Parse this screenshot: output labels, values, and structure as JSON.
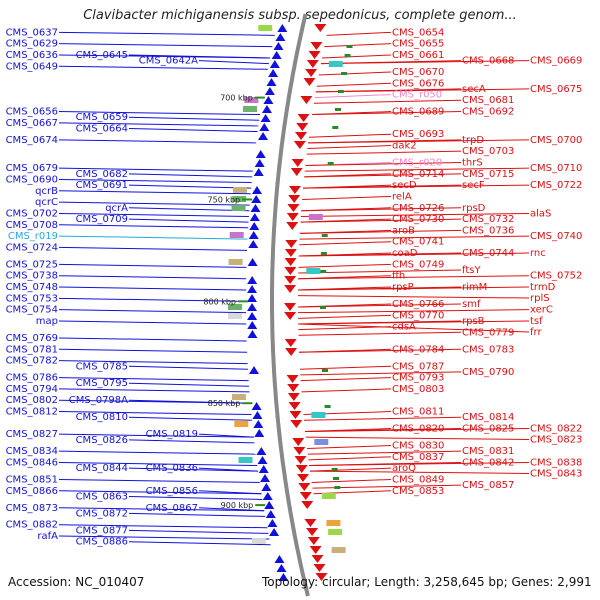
{
  "title": "Clavibacter michiganensis subsp. sepedonicus, complete genom...",
  "footer": {
    "accession": "Accession: NC_010407",
    "summary": "Topology: circular; Length: 3,258,645 bp; Genes: 2,991"
  },
  "colors": {
    "left_strand": "#1111dd",
    "right_strand": "#dd1111",
    "rna_left": "#22aadd",
    "rna_right": "#ee88cc",
    "ruler": "#888888",
    "tick": "#2a8a2a"
  },
  "scale_marks": [
    {
      "label": "700 kbp",
      "pos": 0.13
    },
    {
      "label": "750 kbp",
      "pos": 0.31
    },
    {
      "label": "800 kbp",
      "pos": 0.49
    },
    {
      "label": "850 kbp",
      "pos": 0.67
    },
    {
      "label": "900 kbp",
      "pos": 0.85
    }
  ],
  "left_labels": [
    {
      "text": "CMS_0637",
      "pos": 0.02
    },
    {
      "text": "CMS_0629",
      "pos": 0.04
    },
    {
      "text": "CMS_0636",
      "pos": 0.06
    },
    {
      "text": "CMS_0645",
      "pos": 0.06
    },
    {
      "text": "CMS_0642A",
      "pos": 0.07
    },
    {
      "text": "CMS_0649",
      "pos": 0.08
    },
    {
      "text": "CMS_0656",
      "pos": 0.16
    },
    {
      "text": "CMS_0659",
      "pos": 0.17
    },
    {
      "text": "CMS_0667",
      "pos": 0.18
    },
    {
      "text": "CMS_0664",
      "pos": 0.19
    },
    {
      "text": "CMS_0674",
      "pos": 0.21
    },
    {
      "text": "CMS_0679",
      "pos": 0.26
    },
    {
      "text": "CMS_0682",
      "pos": 0.27
    },
    {
      "text": "CMS_0690",
      "pos": 0.28
    },
    {
      "text": "CMS_0691",
      "pos": 0.29
    },
    {
      "text": "qcrB",
      "pos": 0.3
    },
    {
      "text": "qcrC",
      "pos": 0.32
    },
    {
      "text": "qcrA",
      "pos": 0.33
    },
    {
      "text": "CMS_0702",
      "pos": 0.34
    },
    {
      "text": "CMS_0709",
      "pos": 0.35
    },
    {
      "text": "CMS_0708",
      "pos": 0.36
    },
    {
      "text": "CMS_r019",
      "pos": 0.38,
      "rna": true
    },
    {
      "text": "CMS_0724",
      "pos": 0.4
    },
    {
      "text": "CMS_0725",
      "pos": 0.43
    },
    {
      "text": "CMS_0738",
      "pos": 0.45
    },
    {
      "text": "CMS_0748",
      "pos": 0.47
    },
    {
      "text": "CMS_0753",
      "pos": 0.49
    },
    {
      "text": "CMS_0754",
      "pos": 0.51
    },
    {
      "text": "map",
      "pos": 0.53
    },
    {
      "text": "CMS_0769",
      "pos": 0.56
    },
    {
      "text": "CMS_0781",
      "pos": 0.58
    },
    {
      "text": "CMS_0782",
      "pos": 0.6
    },
    {
      "text": "CMS_0785",
      "pos": 0.61
    },
    {
      "text": "CMS_0786",
      "pos": 0.63
    },
    {
      "text": "CMS_0795",
      "pos": 0.64
    },
    {
      "text": "CMS_0794",
      "pos": 0.65
    },
    {
      "text": "CMS_0802",
      "pos": 0.67
    },
    {
      "text": "CMS_0798A",
      "pos": 0.67
    },
    {
      "text": "CMS_0812",
      "pos": 0.69
    },
    {
      "text": "CMS_0810",
      "pos": 0.7
    },
    {
      "text": "CMS_0827",
      "pos": 0.73
    },
    {
      "text": "CMS_0826",
      "pos": 0.74
    },
    {
      "text": "CMS_0819",
      "pos": 0.73
    },
    {
      "text": "CMS_0834",
      "pos": 0.76
    },
    {
      "text": "CMS_0846",
      "pos": 0.78
    },
    {
      "text": "CMS_0844",
      "pos": 0.79
    },
    {
      "text": "CMS_0836",
      "pos": 0.79
    },
    {
      "text": "CMS_0851",
      "pos": 0.81
    },
    {
      "text": "CMS_0866",
      "pos": 0.83
    },
    {
      "text": "CMS_0863",
      "pos": 0.84
    },
    {
      "text": "CMS_0856",
      "pos": 0.83
    },
    {
      "text": "CMS_0873",
      "pos": 0.86
    },
    {
      "text": "CMS_0872",
      "pos": 0.87
    },
    {
      "text": "CMS_0867",
      "pos": 0.86
    },
    {
      "text": "CMS_0882",
      "pos": 0.89
    },
    {
      "text": "CMS_0877",
      "pos": 0.9
    },
    {
      "text": "rafA",
      "pos": 0.91
    },
    {
      "text": "CMS_0886",
      "pos": 0.92
    }
  ],
  "right_labels": [
    {
      "text": "CMS_0654",
      "pos": 0.02
    },
    {
      "text": "CMS_0655",
      "pos": 0.04
    },
    {
      "text": "CMS_0661",
      "pos": 0.06
    },
    {
      "text": "CMS_0668",
      "pos": 0.07
    },
    {
      "text": "CMS_0669",
      "pos": 0.07
    },
    {
      "text": "CMS_0670",
      "pos": 0.09
    },
    {
      "text": "CMS_0676",
      "pos": 0.11
    },
    {
      "text": "secA",
      "pos": 0.12
    },
    {
      "text": "CMS_0675",
      "pos": 0.12
    },
    {
      "text": "CMS_r050",
      "pos": 0.13,
      "rna": true
    },
    {
      "text": "CMS_0681",
      "pos": 0.14
    },
    {
      "text": "CMS_0689",
      "pos": 0.16
    },
    {
      "text": "CMS_0692",
      "pos": 0.16
    },
    {
      "text": "CMS_0693",
      "pos": 0.2
    },
    {
      "text": "trpD",
      "pos": 0.21
    },
    {
      "text": "CMS_0700",
      "pos": 0.21
    },
    {
      "text": "dak2",
      "pos": 0.22
    },
    {
      "text": "CMS_0703",
      "pos": 0.23
    },
    {
      "text": "CMS_r020",
      "pos": 0.25,
      "rna": true
    },
    {
      "text": "thrS",
      "pos": 0.25
    },
    {
      "text": "CMS_0710",
      "pos": 0.26
    },
    {
      "text": "CMS_0714",
      "pos": 0.27
    },
    {
      "text": "CMS_0715",
      "pos": 0.27
    },
    {
      "text": "secD",
      "pos": 0.29
    },
    {
      "text": "secF",
      "pos": 0.29
    },
    {
      "text": "CMS_0722",
      "pos": 0.29
    },
    {
      "text": "relA",
      "pos": 0.31
    },
    {
      "text": "CMS_0726",
      "pos": 0.33
    },
    {
      "text": "rpsD",
      "pos": 0.33
    },
    {
      "text": "alaS",
      "pos": 0.34
    },
    {
      "text": "CMS_0730",
      "pos": 0.35
    },
    {
      "text": "CMS_0732",
      "pos": 0.35
    },
    {
      "text": "aroB",
      "pos": 0.37
    },
    {
      "text": "CMS_0736",
      "pos": 0.37
    },
    {
      "text": "CMS_0740",
      "pos": 0.38
    },
    {
      "text": "CMS_0741",
      "pos": 0.39
    },
    {
      "text": "coaD",
      "pos": 0.41
    },
    {
      "text": "CMS_0744",
      "pos": 0.41
    },
    {
      "text": "rnc",
      "pos": 0.41
    },
    {
      "text": "CMS_0749",
      "pos": 0.43
    },
    {
      "text": "ftsY",
      "pos": 0.44
    },
    {
      "text": "ffh",
      "pos": 0.45
    },
    {
      "text": "CMS_0752",
      "pos": 0.45
    },
    {
      "text": "rpsP",
      "pos": 0.47
    },
    {
      "text": "rimM",
      "pos": 0.47
    },
    {
      "text": "trmD",
      "pos": 0.47
    },
    {
      "text": "rplS",
      "pos": 0.48
    },
    {
      "text": "CMS_0766",
      "pos": 0.5
    },
    {
      "text": "smf",
      "pos": 0.5
    },
    {
      "text": "xerC",
      "pos": 0.51
    },
    {
      "text": "CMS_0770",
      "pos": 0.52
    },
    {
      "text": "rpsB",
      "pos": 0.53
    },
    {
      "text": "tsf",
      "pos": 0.53
    },
    {
      "text": "frr",
      "pos": 0.53
    },
    {
      "text": "cdsA",
      "pos": 0.54
    },
    {
      "text": "CMS_0779",
      "pos": 0.55
    },
    {
      "text": "CMS_0784",
      "pos": 0.58
    },
    {
      "text": "CMS_0783",
      "pos": 0.58
    },
    {
      "text": "CMS_0787",
      "pos": 0.61
    },
    {
      "text": "CMS_0790",
      "pos": 0.62
    },
    {
      "text": "CMS_0793",
      "pos": 0.63
    },
    {
      "text": "CMS_0803",
      "pos": 0.65
    },
    {
      "text": "CMS_0811",
      "pos": 0.69
    },
    {
      "text": "CMS_0814",
      "pos": 0.7
    },
    {
      "text": "CMS_0820",
      "pos": 0.72
    },
    {
      "text": "CMS_0825",
      "pos": 0.72
    },
    {
      "text": "CMS_0822",
      "pos": 0.72
    },
    {
      "text": "CMS_0823",
      "pos": 0.73
    },
    {
      "text": "CMS_0830",
      "pos": 0.75
    },
    {
      "text": "CMS_0831",
      "pos": 0.76
    },
    {
      "text": "CMS_0837",
      "pos": 0.77
    },
    {
      "text": "CMS_0842",
      "pos": 0.78
    },
    {
      "text": "CMS_0838",
      "pos": 0.78
    },
    {
      "text": "aroQ",
      "pos": 0.79
    },
    {
      "text": "CMS_0843",
      "pos": 0.79
    },
    {
      "text": "CMS_0849",
      "pos": 0.81
    },
    {
      "text": "CMS_0857",
      "pos": 0.82
    },
    {
      "text": "CMS_0853",
      "pos": 0.83
    }
  ]
}
